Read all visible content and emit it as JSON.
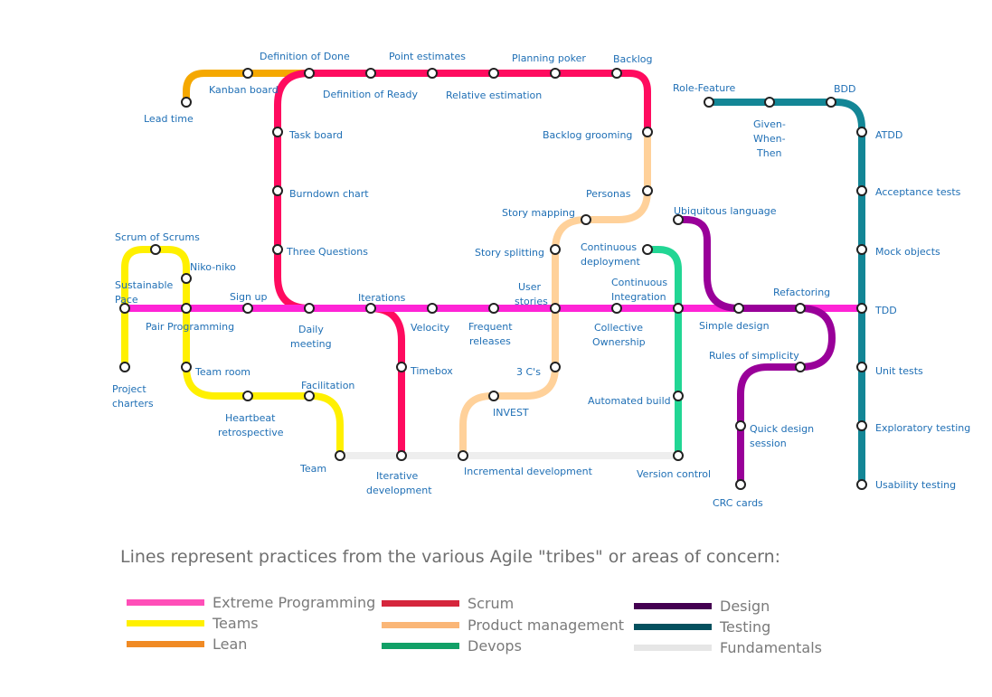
{
  "lines": [
    {
      "id": "fundamentals",
      "color": "#eeeeee"
    },
    {
      "id": "lean",
      "color": "#f5a800"
    },
    {
      "id": "scrum",
      "color": "#ff0b5f"
    },
    {
      "id": "xp",
      "color": "#ff24d6"
    },
    {
      "id": "teams",
      "color": "#fff000"
    },
    {
      "id": "product",
      "color": "#ffd19a"
    },
    {
      "id": "devops",
      "color": "#22d694"
    },
    {
      "id": "design",
      "color": "#990099"
    },
    {
      "id": "testing",
      "color": "#138696"
    }
  ],
  "stations": {
    "lead_time": "Lead time",
    "kanban_board": "Kanban board",
    "definition_of_done": "Definition of Done",
    "definition_of_ready": "Definition of Ready",
    "point_estimates": "Point estimates",
    "relative_estimation": "Relative estimation",
    "planning_poker": "Planning poker",
    "backlog": "Backlog",
    "backlog_grooming": "Backlog grooming",
    "personas": "Personas",
    "story_mapping": "Story mapping",
    "story_splitting": "Story splitting",
    "task_board": "Task board",
    "burndown_chart": "Burndown chart",
    "three_questions": "Three Questions",
    "role_feature": "Role-Feature",
    "given_when_then_1": "Given-",
    "given_when_then_2": "When-",
    "given_when_then_3": "Then",
    "bdd": "BDD",
    "atdd": "ATDD",
    "acceptance_tests": "Acceptance tests",
    "mock_objects": "Mock objects",
    "tdd": "TDD",
    "unit_tests": "Unit tests",
    "exploratory_testing": "Exploratory testing",
    "usability_testing": "Usability testing",
    "scrum_of_scrums": "Scrum of Scrums",
    "niko_niko": "Niko-niko",
    "sustainable_pace_1": "Sustainable",
    "sustainable_pace_2": "Pace",
    "sign_up": "Sign up",
    "pair_programming": "Pair Programming",
    "project_charters_1": "Project",
    "project_charters_2": "charters",
    "team_room": "Team room",
    "heartbeat_1": "Heartbeat",
    "heartbeat_2": "retrospective",
    "facilitation": "Facilitation",
    "team": "Team",
    "iterations": "Iterations",
    "daily_meeting_1": "Daily",
    "daily_meeting_2": "meeting",
    "velocity": "Velocity",
    "timebox": "Timebox",
    "iterative_dev_1": "Iterative",
    "iterative_dev_2": "development",
    "frequent_releases_1": "Frequent",
    "frequent_releases_2": "releases",
    "user_stories_1": "User",
    "user_stories_2": "stories",
    "three_cs": "3 C's",
    "invest": "INVEST",
    "incremental_dev": "Incremental development",
    "continuous_deployment_1": "Continuous",
    "continuous_deployment_2": "deployment",
    "continuous_integration_1": "Continuous",
    "continuous_integration_2": "Integration",
    "collective_ownership_1": "Collective",
    "collective_ownership_2": "Ownership",
    "automated_build": "Automated build",
    "version_control": "Version control",
    "ubiquitous_language": "Ubiquitous language",
    "simple_design": "Simple design",
    "refactoring": "Refactoring",
    "rules_of_simplicity": "Rules of simplicity",
    "quick_design_1": "Quick design",
    "quick_design_2": "session",
    "crc_cards": "CRC cards"
  },
  "caption": "Lines represent practices from the various Agile \"tribes\" or areas of concern:",
  "legend": [
    {
      "label": "Extreme Programming",
      "color": "#ff4fb8"
    },
    {
      "label": "Teams",
      "color": "#fff000"
    },
    {
      "label": "Lean",
      "color": "#f08a24"
    },
    {
      "label": "Scrum",
      "color": "#d5263c"
    },
    {
      "label": "Product management",
      "color": "#fab677"
    },
    {
      "label": "Devops",
      "color": "#11a067"
    },
    {
      "label": "Design",
      "color": "#440051"
    },
    {
      "label": "Testing",
      "color": "#04505e"
    },
    {
      "label": "Fundamentals",
      "color": "#e6e6e6"
    }
  ]
}
